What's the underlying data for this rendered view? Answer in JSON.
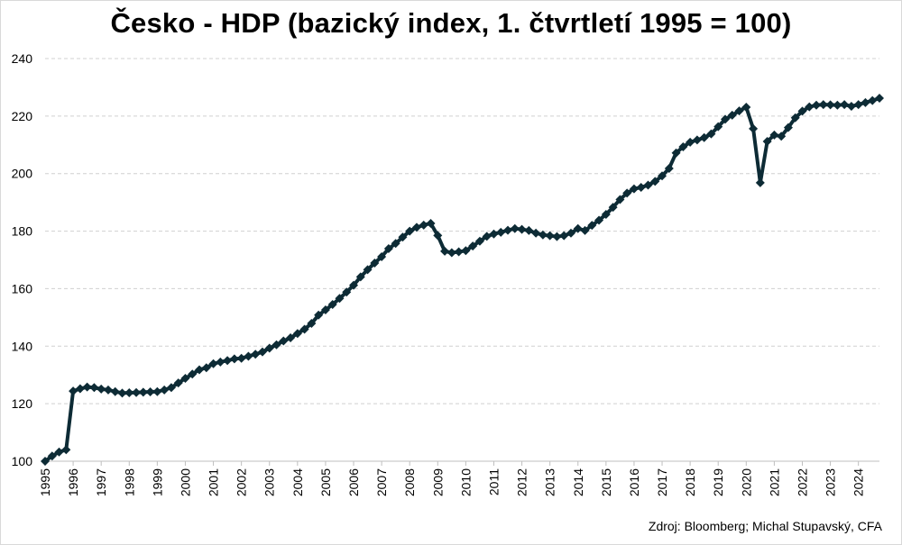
{
  "chart_data": {
    "type": "line",
    "title": "Česko - HDP (bazický index, 1. čtvrtletí 1995 = 100)",
    "source": "Zdroj: Bloomberg; Michal Stupavský, CFA",
    "ylim": [
      100,
      240
    ],
    "yticks": [
      "100",
      "120",
      "140",
      "160",
      "180",
      "200",
      "220",
      "240"
    ],
    "xtick_labels": [
      "1995",
      "1996",
      "1997",
      "1998",
      "1999",
      "2000",
      "2001",
      "2002",
      "2003",
      "2004",
      "2005",
      "2006",
      "2007",
      "2008",
      "2009",
      "2010",
      "2011",
      "2012",
      "2013",
      "2014",
      "2015",
      "2016",
      "2017",
      "2018",
      "2019",
      "2020",
      "2021",
      "2022",
      "2023",
      "2024"
    ],
    "grid": true,
    "line_color": "#0d2b35",
    "marker": "diamond",
    "series": [
      {
        "values": [
          100,
          101.8,
          103.2,
          104,
          124.4,
          125.2,
          125.8,
          125.6,
          125.1,
          124.8,
          124.2,
          123.7,
          123.8,
          123.9,
          124,
          124.1,
          124.2,
          124.8,
          125.6,
          127.2,
          128.8,
          130.3,
          131.8,
          132.5,
          133.9,
          134.5,
          135.0,
          135.6,
          135.8,
          136.5,
          137.2,
          138.0,
          139.3,
          140.5,
          141.8,
          142.9,
          144.4,
          145.9,
          147.9,
          150.8,
          152.6,
          154.5,
          156.6,
          158.8,
          161.2,
          164.1,
          166.6,
          168.9,
          171.1,
          173.9,
          175.7,
          177.9,
          180.0,
          181.3,
          182.1,
          182.7,
          178.5,
          173.0,
          172.5,
          172.8,
          173.2,
          174.8,
          176.5,
          178.2,
          179.0,
          179.6,
          180.3,
          180.9,
          180.6,
          180.2,
          179.3,
          178.7,
          178.4,
          178.1,
          178.4,
          179.3,
          180.9,
          180.2,
          182.0,
          183.8,
          185.8,
          188.3,
          191.0,
          193.2,
          194.7,
          195.2,
          196.0,
          197.3,
          199.2,
          201.8,
          207.2,
          209.3,
          210.9,
          211.7,
          212.5,
          213.8,
          216.3,
          218.9,
          220.3,
          221.8,
          223.1,
          215.6,
          196.8,
          211.2,
          213.4,
          213.0,
          216.0,
          219.4,
          221.7,
          223.2,
          223.8,
          224.0,
          223.9,
          223.8,
          224.0,
          223.4,
          224.0,
          224.7,
          225.4,
          226.2
        ]
      }
    ]
  }
}
